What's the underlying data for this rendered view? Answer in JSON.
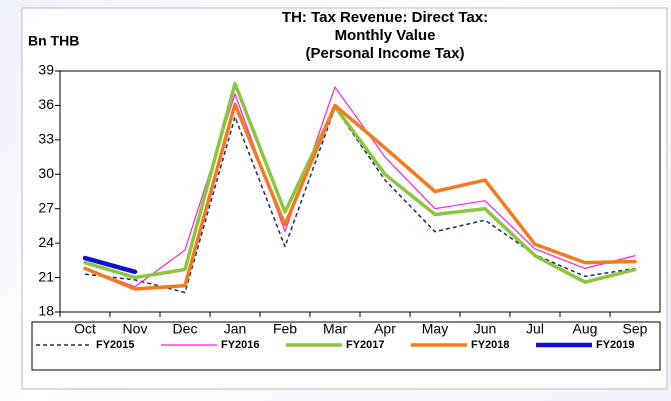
{
  "chart_data": {
    "type": "line",
    "title": [
      "TH: Tax Revenue: Direct Tax:",
      "Monthly Value",
      "(Personal Income Tax)"
    ],
    "ylabel": "Bn THB",
    "categories": [
      "Oct",
      "Nov",
      "Dec",
      "Jan",
      "Feb",
      "Mar",
      "Apr",
      "May",
      "Jun",
      "Jul",
      "Aug",
      "Sep"
    ],
    "ylim": [
      18,
      39
    ],
    "yticks": [
      18,
      21,
      24,
      27,
      30,
      33,
      36,
      39
    ],
    "series": [
      {
        "name": "FY2015",
        "color": "#1f2a6e",
        "style": "dashed",
        "values": [
          21.3,
          20.8,
          19.7,
          35.0,
          23.7,
          35.8,
          29.5,
          25.0,
          26.0,
          23.0,
          21.1,
          21.8
        ]
      },
      {
        "name": "FY2016",
        "color": "#ff22dd",
        "values": [
          21.8,
          20.2,
          23.4,
          37.0,
          25.0,
          37.6,
          31.5,
          27.0,
          27.7,
          23.5,
          21.8,
          22.9
        ]
      },
      {
        "name": "FY2017",
        "color": "#8cc63f",
        "values": [
          22.3,
          21.0,
          21.7,
          37.9,
          26.7,
          35.9,
          30.0,
          26.5,
          27.0,
          22.9,
          20.6,
          21.7
        ]
      },
      {
        "name": "FY2018",
        "color": "#f47a20",
        "values": [
          21.8,
          20.0,
          20.3,
          36.1,
          25.6,
          36.0,
          32.3,
          28.5,
          29.5,
          23.9,
          22.3,
          22.4
        ]
      },
      {
        "name": "FY2019",
        "color": "#1010d0",
        "values": [
          22.7,
          21.5,
          null,
          null,
          null,
          null,
          null,
          null,
          null,
          null,
          null,
          null
        ]
      }
    ]
  }
}
